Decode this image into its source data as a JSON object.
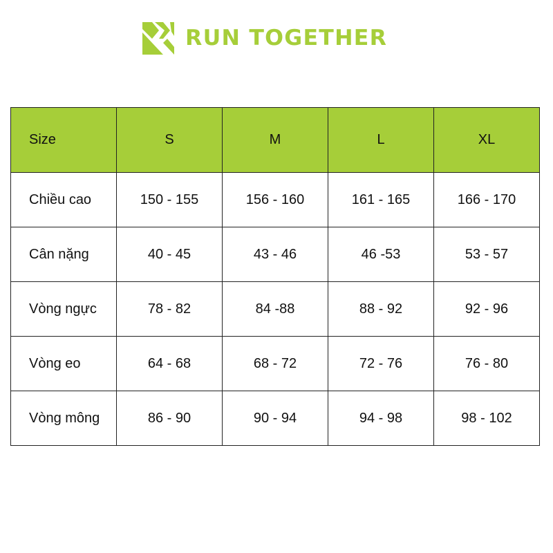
{
  "brand": {
    "name": "RUN TOGETHER",
    "color": "#a6ce39",
    "logo_icon": "double-chevron-r-logo"
  },
  "table": {
    "header_color": "#a6ce39",
    "headers": [
      "Size",
      "S",
      "M",
      "L",
      "XL"
    ],
    "rows": [
      [
        "Chiều cao",
        "150 - 155",
        "156 - 160",
        "161 - 165",
        "166 - 170"
      ],
      [
        "Cân nặng",
        "40 - 45",
        "43 - 46",
        "46 -53",
        "53 - 57"
      ],
      [
        "Vòng ngực",
        "78 - 82",
        "84 -88",
        "88 - 92",
        "92 - 96"
      ],
      [
        "Vòng eo",
        "64 - 68",
        "68 - 72",
        "72 - 76",
        "76 - 80"
      ],
      [
        "Vòng mông",
        "86 - 90",
        "90 - 94",
        "94 - 98",
        "98 - 102"
      ]
    ]
  }
}
